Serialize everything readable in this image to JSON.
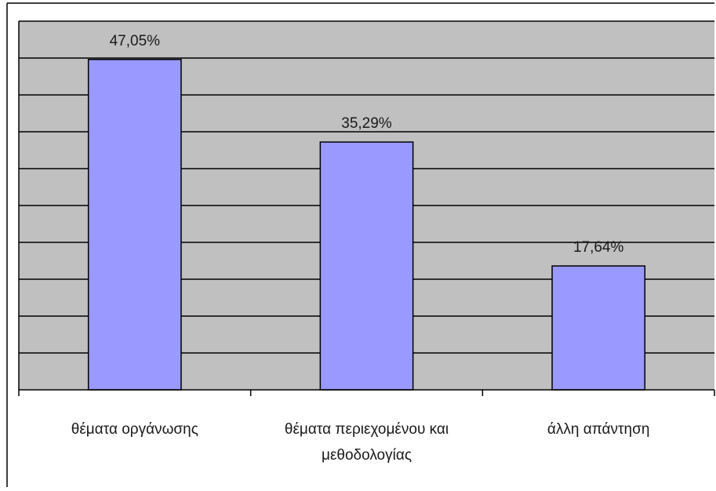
{
  "chart_data": {
    "type": "bar",
    "categories": [
      [
        "θέματα οργάνωσης"
      ],
      [
        "θέματα περιεχομένου και",
        "μεθοδολογίας"
      ],
      [
        "άλλη απάντηση"
      ]
    ],
    "values": [
      47.05,
      35.29,
      17.64
    ],
    "data_labels": [
      "47,05%",
      "35,29%",
      "17,64%"
    ],
    "ylim": [
      0,
      52.5
    ],
    "gridline_step": 5.25,
    "grid": true,
    "legend": "none",
    "title": "",
    "xlabel": "",
    "ylabel": ""
  },
  "colors": {
    "plot_background": "#c0c0c0",
    "bar_fill": "#9999ff",
    "bar_stroke": "#000000",
    "gridline": "#000000",
    "axis": "#000000",
    "frame": "#000000"
  }
}
